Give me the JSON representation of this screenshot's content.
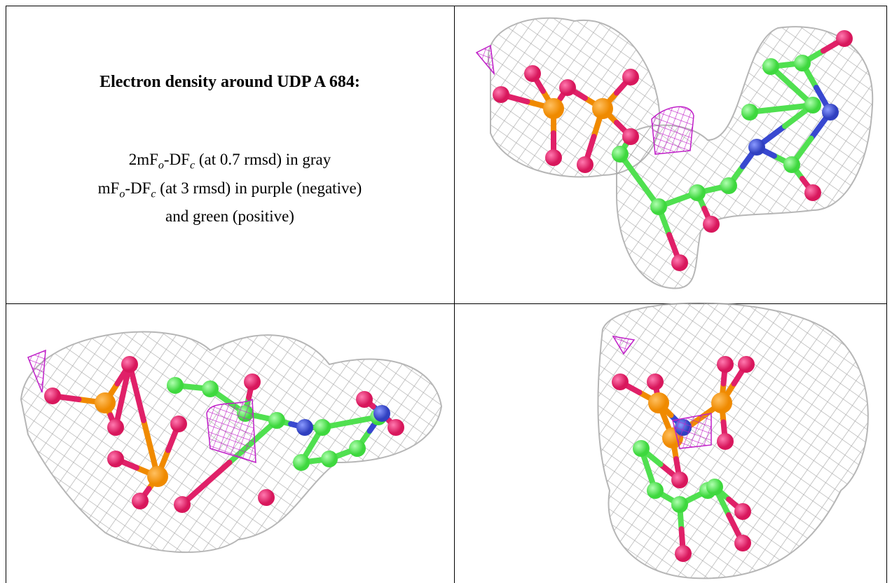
{
  "header": {
    "title": "Electron density around UDP A 684:"
  },
  "legend": {
    "lines": [
      [
        "2mF",
        "o",
        "-DF",
        "c",
        " (at 0.7 rmsd) in gray"
      ],
      [
        "mF",
        "o",
        "-DF",
        "c",
        " (at 3 rmsd) in purple (negative)"
      ],
      [
        "and green (positive)"
      ]
    ]
  }
}
